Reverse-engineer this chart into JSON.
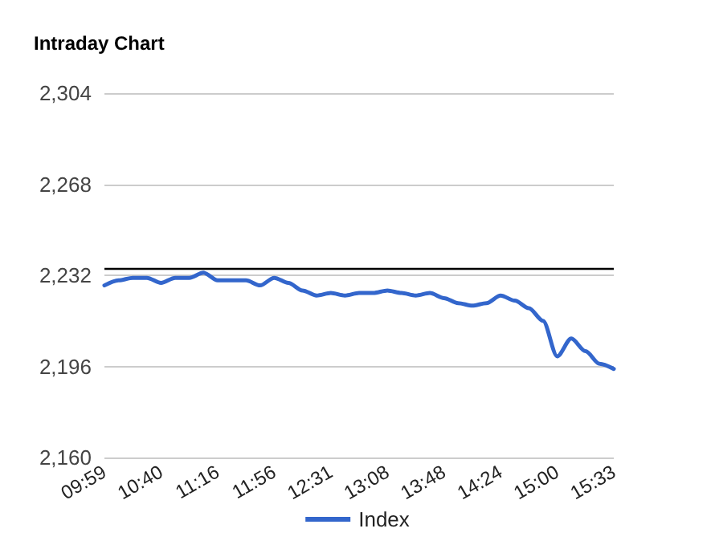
{
  "chart_data": {
    "type": "line",
    "title": "Intraday Chart",
    "categories": [
      "09:59",
      null,
      null,
      null,
      "10:40",
      null,
      null,
      null,
      "11:16",
      null,
      null,
      null,
      "11:56",
      null,
      null,
      null,
      "12:31",
      null,
      null,
      null,
      "13:08",
      null,
      null,
      null,
      "13:48",
      null,
      null,
      null,
      "14:24",
      null,
      null,
      null,
      "15:00",
      null,
      null,
      null,
      "15:33"
    ],
    "series": [
      {
        "name": "Index",
        "color": "#3366cc",
        "values": [
          2228,
          2230,
          2231,
          2231,
          2229,
          2231,
          2231,
          2233,
          2230,
          2230,
          2230,
          2228,
          2231,
          2229,
          2226,
          2224,
          2225,
          2224,
          2225,
          2225,
          2226,
          2225,
          2224,
          2225,
          2223,
          2221,
          2220,
          2221,
          2224,
          2222,
          2219,
          2214,
          2200,
          2207,
          2202,
          2197,
          2195
        ]
      }
    ],
    "ylim": [
      2160,
      2304
    ],
    "yticks": [
      {
        "value": 2160,
        "label": "2,160"
      },
      {
        "value": 2196,
        "label": "2,196"
      },
      {
        "value": 2232,
        "label": "2,232"
      },
      {
        "value": 2268,
        "label": "2,268"
      },
      {
        "value": 2304,
        "label": "2,304"
      }
    ],
    "ref_lines": [
      {
        "axis": "y",
        "value": 2235,
        "color": "#000000"
      }
    ],
    "grid": "y",
    "legend": "bottom",
    "marker": "none",
    "line_style": "solid"
  }
}
